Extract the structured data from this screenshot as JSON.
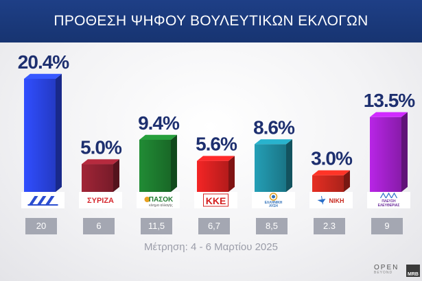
{
  "header": {
    "title": "ΠΡΟΘΕΣΗ ΨΗΦΟΥ ΒΟΥΛΕΥΤΙΚΩΝ ΕΚΛΟΓΩΝ"
  },
  "footer": {
    "note": "Μέτρηση: 4 - 6 Μαρτίου 2025"
  },
  "branding": {
    "open": "OPEN",
    "open_sub": "BEYOND",
    "mrb": "MRB"
  },
  "chart_data": {
    "type": "bar",
    "title": "ΠΡΟΘΕΣΗ ΨΗΦΟΥ ΒΟΥΛΕΥΤΙΚΩΝ ΕΚΛΟΓΩΝ",
    "ylim": [
      0,
      22
    ],
    "grid": false,
    "categories": [
      "ΝΔ",
      "ΣΥΡΙΖΑ",
      "ΠΑΣΟΚ",
      "ΚΚΕ",
      "ΕΛΛΗΝΙΚΗ ΛΥΣΗ",
      "ΝΙΚΗ",
      "ΠΛΕΥΣΗ ΕΛΕΥΘΕΡΙΑΣ"
    ],
    "values": [
      20.4,
      5.0,
      9.4,
      5.6,
      8.6,
      3.0,
      13.5
    ],
    "value_labels": [
      "20.4%",
      "5.0%",
      "9.4%",
      "5.6%",
      "8.6%",
      "3.0%",
      "13.5%"
    ],
    "previous_labels": [
      "20",
      "6",
      "11,5",
      "6,7",
      "8,5",
      "2.3",
      "9"
    ],
    "colors": [
      "#2a44e6",
      "#8c2030",
      "#1d7a2e",
      "#d42020",
      "#1f8a9e",
      "#c8281e",
      "#a020c8"
    ],
    "logos": [
      {
        "icon": "nd-logo",
        "text": "",
        "color": "#2a4cd0"
      },
      {
        "icon": "syriza-logo",
        "text": "ΣΥΡΙΖΑ",
        "color": "#d6282e"
      },
      {
        "icon": "pasok-logo",
        "text": "ΠΑΣΟΚ",
        "subtext": "κίνημα αλλαγής",
        "color": "#1d7a2e"
      },
      {
        "icon": "kke-logo",
        "text": "ΚΚΕ",
        "color": "#d42020"
      },
      {
        "icon": "elliniki-lysi-logo",
        "text": "ΕΛΛΗΝΙΚΗ",
        "subtext": "ΛΥΣΗ",
        "color": "#2f6fb8"
      },
      {
        "icon": "niki-logo",
        "text": "ΝΙΚΗ",
        "color": "#c8281e"
      },
      {
        "icon": "plefsi-logo",
        "text": "ΠΛΕΥΣΗ",
        "subtext": "ΕΛΕΥΘΕΡΙΑΣ",
        "color": "#6a2a9a"
      }
    ]
  }
}
